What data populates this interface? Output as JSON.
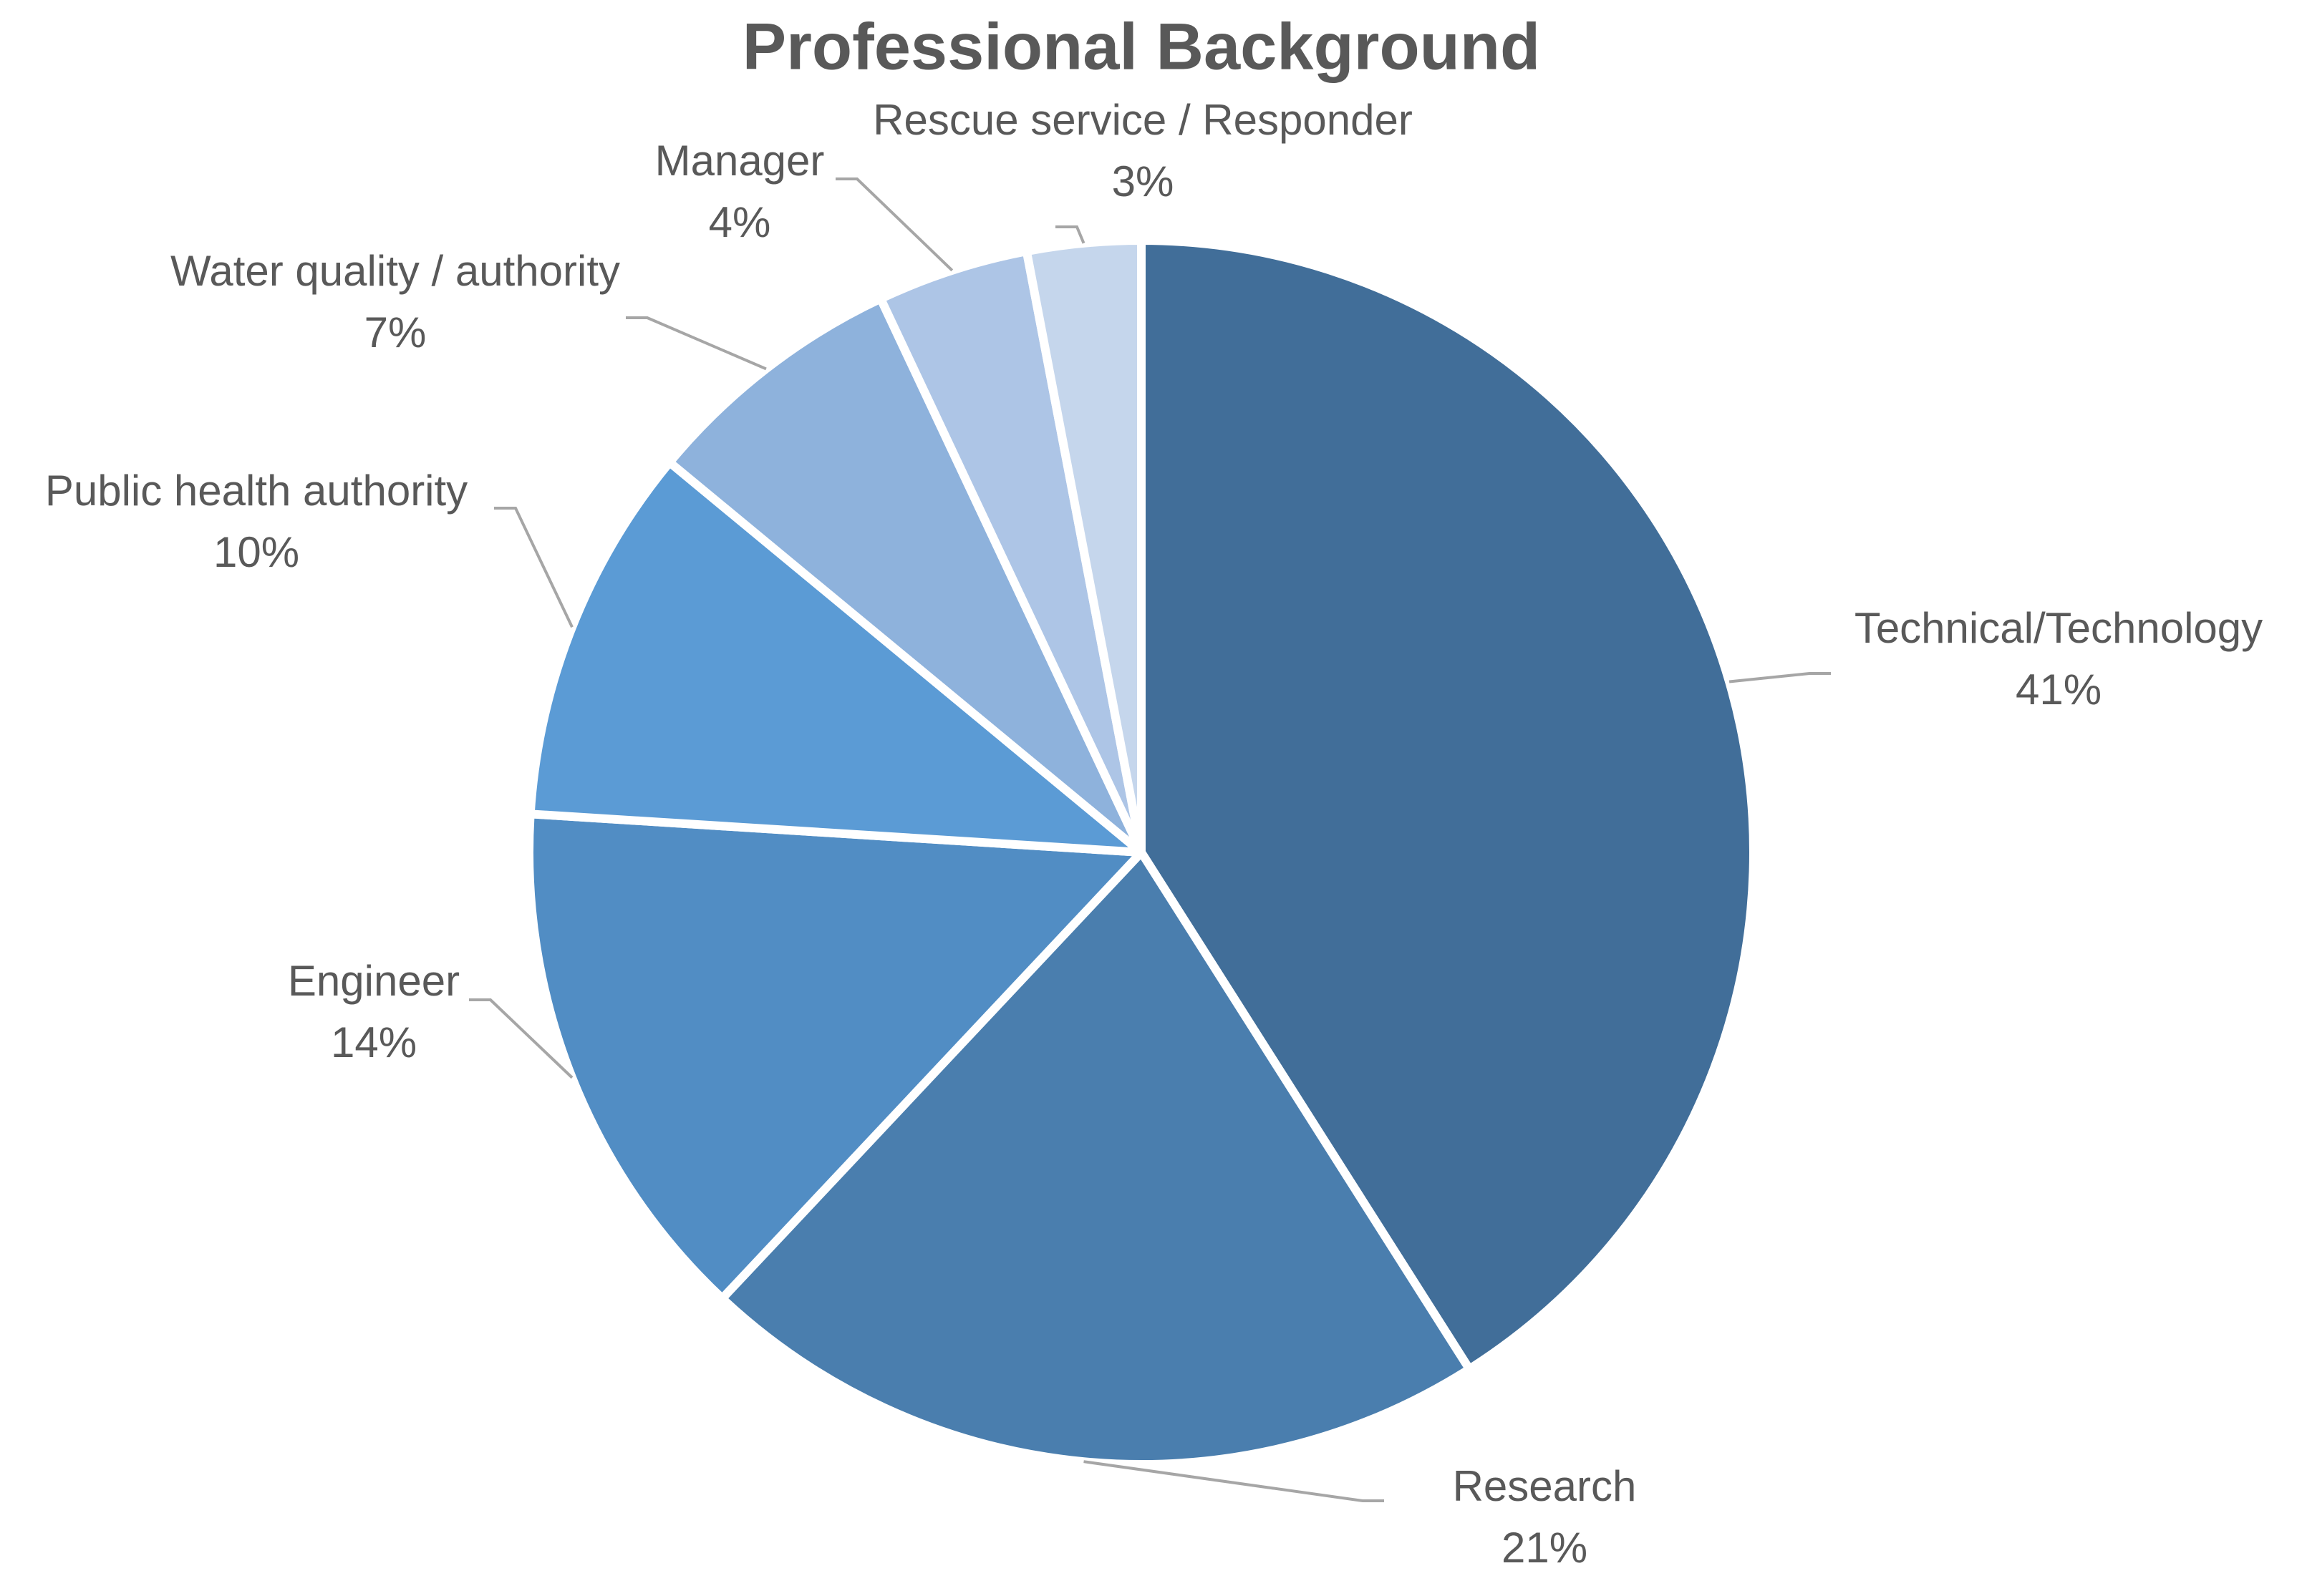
{
  "chart_data": {
    "type": "pie",
    "title": "Professional Background",
    "categories": [
      "Technical/Technology",
      "Research",
      "Engineer",
      "Public health authority",
      "Water quality / authority",
      "Manager",
      "Rescue service / Responder"
    ],
    "values": [
      41,
      21,
      14,
      10,
      7,
      4,
      3
    ],
    "value_labels": [
      "41%",
      "21%",
      "14%",
      "10%",
      "7%",
      "4%",
      "3%"
    ],
    "colors": [
      "#416e99",
      "#4a7eae",
      "#518dc4",
      "#5b9bd5",
      "#8eb2dc",
      "#adc5e6",
      "#c5d6ec"
    ]
  }
}
